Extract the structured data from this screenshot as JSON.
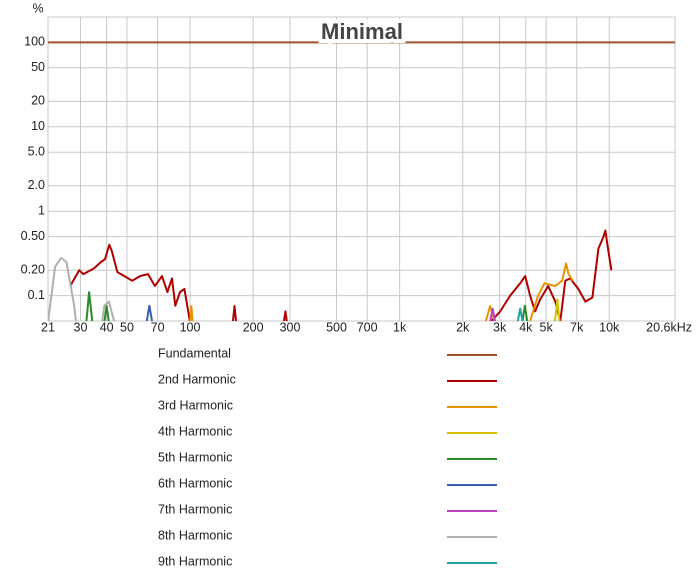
{
  "chart_data": {
    "type": "line",
    "title": "Minimal",
    "y_label": "%",
    "log_x": true,
    "log_y": true,
    "grid": true,
    "xlim": [
      21,
      20600
    ],
    "ylim": [
      0.05,
      200
    ],
    "xticks": [
      21,
      30,
      40,
      50,
      70,
      100,
      200,
      300,
      500,
      700,
      {
        "value": 1000,
        "label": "1k"
      },
      {
        "value": 2000,
        "label": "2k"
      },
      {
        "value": 3000,
        "label": "3k"
      },
      {
        "value": 4000,
        "label": "4k"
      },
      {
        "value": 5000,
        "label": "5k"
      },
      {
        "value": 7000,
        "label": "7k"
      },
      {
        "value": 10000,
        "label": "10k"
      },
      {
        "value": 20600,
        "label": "20.6kHz"
      }
    ],
    "yticks": [
      100,
      50,
      20,
      10,
      {
        "value": 5,
        "label": "5.0"
      },
      {
        "value": 2,
        "label": "2.0"
      },
      1,
      {
        "value": 0.5,
        "label": "0.50"
      },
      {
        "value": 0.2,
        "label": "0.20"
      },
      0.1
    ],
    "series": [
      {
        "name": "Fundamental",
        "color": "#a0522d",
        "x": [
          21,
          20600
        ],
        "values": [
          100,
          100
        ]
      },
      {
        "name": "2nd Harmonic",
        "color": "#b00000",
        "x": [
          26.8,
          29.6,
          31,
          34.8,
          37.6,
          39.3,
          41.2,
          42.3,
          45,
          48.6,
          53,
          57.7,
          63,
          68,
          73.5,
          78,
          82,
          85,
          89.5,
          94,
          100,
          null,
          160,
          163,
          166,
          null,
          280,
          285,
          290,
          null,
          2703,
          3018,
          3369,
          3761,
          3972,
          4195,
          4431,
          4680,
          5114,
          5530,
          5841,
          6169,
          6515,
          7121,
          7695,
          8316,
          8883,
          9386,
          9590,
          9800,
          10240
        ],
        "values": [
          0.13,
          0.2,
          0.18,
          0.21,
          0.25,
          0.27,
          0.4,
          0.34,
          0.19,
          0.17,
          0.15,
          0.17,
          0.18,
          0.13,
          0.17,
          0.11,
          0.16,
          0.076,
          0.11,
          0.12,
          0.048,
          null,
          0.048,
          0.075,
          0.048,
          null,
          0.048,
          0.065,
          0.048,
          null,
          0.048,
          0.065,
          0.1,
          0.14,
          0.17,
          0.1,
          0.065,
          0.09,
          0.13,
          0.085,
          0.05,
          0.15,
          0.16,
          0.12,
          0.085,
          0.095,
          0.36,
          0.5,
          0.59,
          0.4,
          0.2
        ]
      },
      {
        "name": "3rd Harmonic",
        "color": "#e59400",
        "x": [
          100,
          101.5,
          103,
          null,
          2565,
          2703,
          2850,
          null,
          4195,
          4580,
          4906,
          5530,
          5960,
          6230,
          6390,
          6700
        ],
        "values": [
          0.048,
          0.075,
          0.048,
          null,
          0.048,
          0.075,
          0.048,
          null,
          0.05,
          0.1,
          0.14,
          0.13,
          0.15,
          0.24,
          0.18,
          0.15
        ]
      },
      {
        "name": "4th Harmonic",
        "color": "#d8c000",
        "x": [
          5500,
          5650,
          5800
        ],
        "values": [
          0.048,
          0.09,
          0.048
        ]
      },
      {
        "name": "5th Harmonic",
        "color": "#2a8a2a",
        "x": [
          32,
          33,
          34.2,
          null,
          39,
          40,
          41,
          null,
          3850,
          3960,
          4070
        ],
        "values": [
          0.048,
          0.11,
          0.048,
          null,
          0.048,
          0.076,
          0.048,
          null,
          0.048,
          0.076,
          0.048
        ]
      },
      {
        "name": "6th Harmonic",
        "color": "#3a5fb0",
        "x": [
          62,
          64,
          66
        ],
        "values": [
          0.048,
          0.076,
          0.048
        ]
      },
      {
        "name": "7th Harmonic",
        "color": "#c040c0",
        "x": [
          2700,
          2780,
          2860
        ],
        "values": [
          0.048,
          0.07,
          0.048
        ]
      },
      {
        "name": "8th Harmonic",
        "color": "#b0b0b0",
        "x": [
          21,
          22.7,
          24.3,
          25.7,
          27.9,
          28.6,
          null,
          38,
          39,
          41,
          43.6
        ],
        "values": [
          0.048,
          0.22,
          0.28,
          0.25,
          0.08,
          0.048,
          null,
          0.048,
          0.076,
          0.085,
          0.048
        ]
      },
      {
        "name": "9th Harmonic",
        "color": "#20a0a0",
        "x": [
          3650,
          3761,
          3870
        ],
        "values": [
          0.048,
          0.07,
          0.048
        ]
      }
    ]
  }
}
